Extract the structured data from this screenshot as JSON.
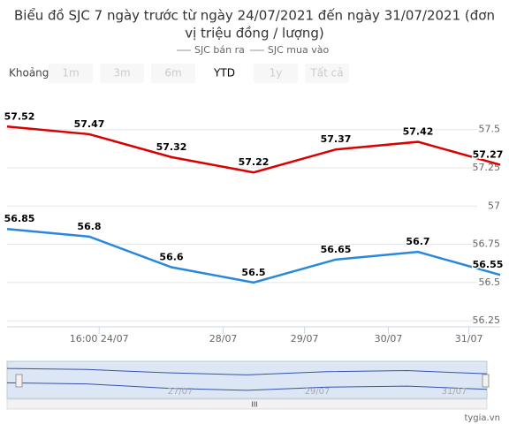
{
  "chart_data": {
    "type": "line",
    "title": "Biểu đồ SJC 7 ngày trước từ ngày 24/07/2021 đến ngày 31/07/2021 (đơn",
    "subtitle": "vị triệu đồng / lượng)",
    "categories": [
      null,
      null,
      null,
      null,
      null,
      null,
      null
    ],
    "series": [
      {
        "name": "SJC bán ra",
        "color": "#d90000",
        "values": [
          57.52,
          57.47,
          57.32,
          57.22,
          57.37,
          57.42,
          57.27
        ]
      },
      {
        "name": "SJC mua vào",
        "color": "#2a88dc",
        "values": [
          56.85,
          56.8,
          56.6,
          56.5,
          56.65,
          56.7,
          56.55
        ]
      }
    ],
    "xlim": [
      0,
      6
    ],
    "xticks": [
      {
        "value": 1.12,
        "label": "16:00 24/07"
      },
      {
        "value": 2.63,
        "label": "28/07"
      },
      {
        "value": 3.62,
        "label": "29/07"
      },
      {
        "value": 4.64,
        "label": "30/07"
      },
      {
        "value": 5.62,
        "label": "31/07"
      }
    ],
    "ylim": [
      56.21,
      57.77
    ],
    "yticks": [
      56.25,
      56.5,
      56.75,
      57,
      57.25,
      57.5
    ],
    "grid": true,
    "range_selector": {
      "label": "Khoảng",
      "buttons": [
        "1m",
        "3m",
        "6m",
        "YTD",
        "1y",
        "Tất cả"
      ],
      "selected": 3
    },
    "navigator_labels": [
      "27/07",
      "29/07",
      "31/07"
    ],
    "credit": "tygia.vn"
  }
}
